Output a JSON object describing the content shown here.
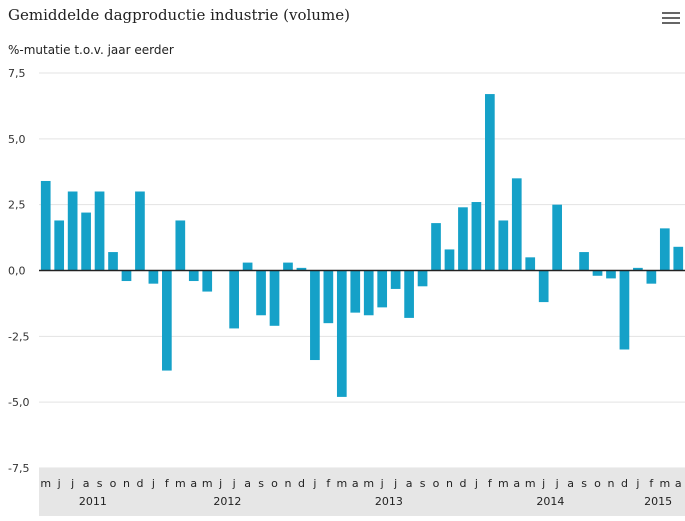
{
  "header": {
    "title": "Gemiddelde dagproductie industrie (volume)",
    "subtitle": "%-mutatie t.o.v. jaar eerder",
    "menu_icon": "hamburger-menu-icon"
  },
  "colors": {
    "bar": "#15A1C8",
    "zero_line": "#222222",
    "grid": "#e3e3e3",
    "axis_band": "#e6e6e6"
  },
  "chart_data": {
    "type": "bar",
    "title": "Gemiddelde dagproductie industrie (volume)",
    "ylabel": "%-mutatie t.o.v. jaar eerder",
    "ylim": [
      -7.5,
      7.5
    ],
    "yticks": [
      "7,5",
      "5,0",
      "2,5",
      "0,0",
      "-2,5",
      "-5,0",
      "-7,5"
    ],
    "ytick_values": [
      7.5,
      5.0,
      2.5,
      0.0,
      -2.5,
      -5.0,
      -7.5
    ],
    "grid": true,
    "categories": [
      "m",
      "j",
      "j",
      "a",
      "s",
      "o",
      "n",
      "d",
      "j",
      "f",
      "m",
      "a",
      "m",
      "j",
      "j",
      "a",
      "s",
      "o",
      "n",
      "d",
      "j",
      "f",
      "m",
      "a",
      "m",
      "j",
      "j",
      "a",
      "s",
      "o",
      "n",
      "d",
      "j",
      "f",
      "m",
      "a",
      "m",
      "j",
      "j",
      "a",
      "s",
      "o",
      "n",
      "d",
      "j",
      "f",
      "m",
      "a"
    ],
    "values": [
      3.4,
      1.9,
      3.0,
      2.2,
      3.0,
      0.7,
      -0.4,
      3.0,
      -0.5,
      -3.8,
      1.9,
      -0.4,
      -0.8,
      null,
      -2.2,
      0.3,
      -1.7,
      -2.1,
      0.3,
      0.1,
      -3.4,
      -2.0,
      -4.8,
      -1.6,
      -1.7,
      -1.4,
      -0.7,
      -1.8,
      -0.6,
      1.8,
      0.8,
      2.4,
      2.6,
      6.7,
      1.9,
      3.5,
      0.5,
      -1.2,
      2.5,
      null,
      0.7,
      -0.2,
      -0.3,
      -3.0,
      0.1,
      -0.5,
      1.6,
      0.9
    ],
    "years": [
      {
        "label": "2011",
        "start": 0,
        "end": 7
      },
      {
        "label": "2012",
        "start": 8,
        "end": 19
      },
      {
        "label": "2013",
        "start": 20,
        "end": 31
      },
      {
        "label": "2014",
        "start": 32,
        "end": 43
      },
      {
        "label": "2015",
        "start": 44,
        "end": 47
      }
    ]
  }
}
